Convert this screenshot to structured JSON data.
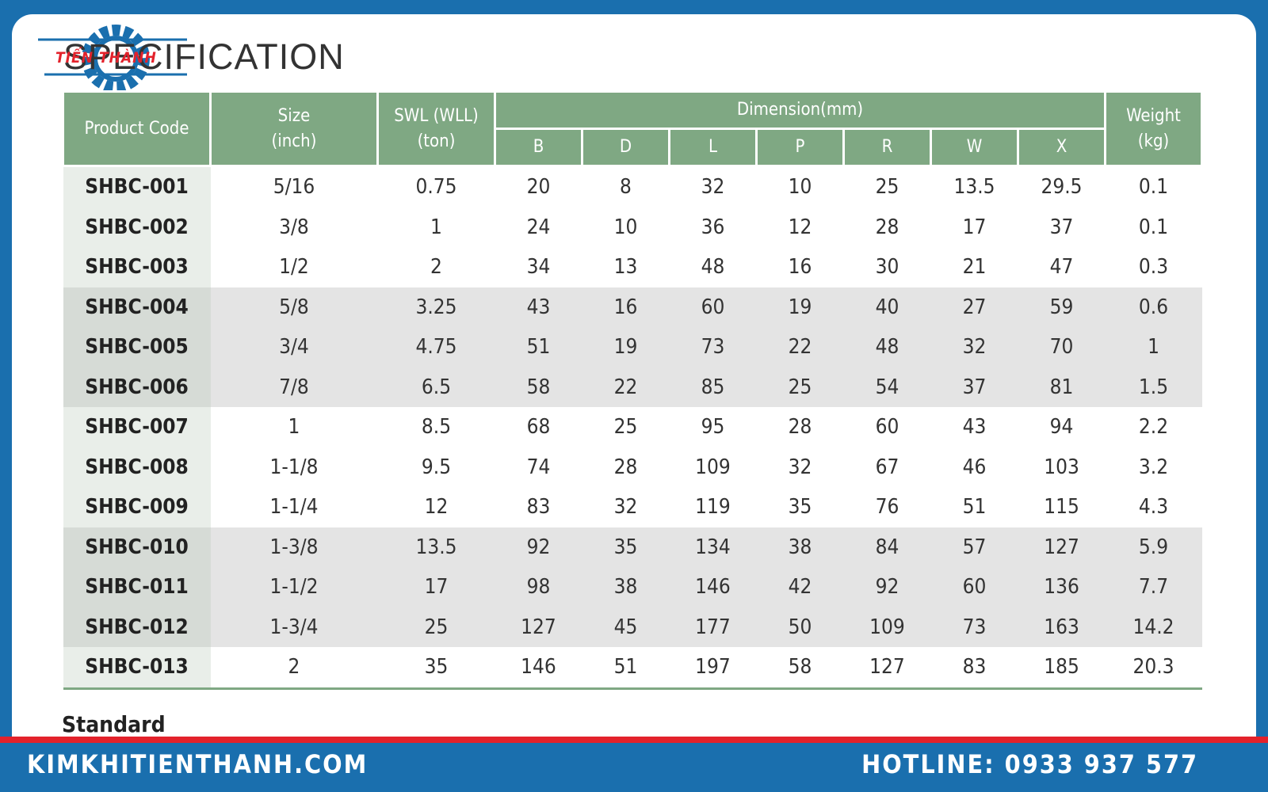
{
  "header": {
    "logo": "TIẾN THÀNH",
    "title": "SPECIFICATION"
  },
  "table": {
    "columns": {
      "code": "Product Code",
      "size": "Size\n(inch)",
      "swl": "SWL (WLL)\n(ton)",
      "dimension": "Dimension(mm)",
      "dims": [
        "B",
        "D",
        "L",
        "P",
        "R",
        "W",
        "X"
      ],
      "weight": "Weight\n(kg)"
    },
    "rows": [
      [
        "SHBC-001",
        "5/16",
        "0.75",
        "20",
        "8",
        "32",
        "10",
        "25",
        "13.5",
        "29.5",
        "0.1"
      ],
      [
        "SHBC-002",
        "3/8",
        "1",
        "24",
        "10",
        "36",
        "12",
        "28",
        "17",
        "37",
        "0.1"
      ],
      [
        "SHBC-003",
        "1/2",
        "2",
        "34",
        "13",
        "48",
        "16",
        "30",
        "21",
        "47",
        "0.3"
      ],
      [
        "SHBC-004",
        "5/8",
        "3.25",
        "43",
        "16",
        "60",
        "19",
        "40",
        "27",
        "59",
        "0.6"
      ],
      [
        "SHBC-005",
        "3/4",
        "4.75",
        "51",
        "19",
        "73",
        "22",
        "48",
        "32",
        "70",
        "1"
      ],
      [
        "SHBC-006",
        "7/8",
        "6.5",
        "58",
        "22",
        "85",
        "25",
        "54",
        "37",
        "81",
        "1.5"
      ],
      [
        "SHBC-007",
        "1",
        "8.5",
        "68",
        "25",
        "95",
        "28",
        "60",
        "43",
        "94",
        "2.2"
      ],
      [
        "SHBC-008",
        "1-1/8",
        "9.5",
        "74",
        "28",
        "109",
        "32",
        "67",
        "46",
        "103",
        "3.2"
      ],
      [
        "SHBC-009",
        "1-1/4",
        "12",
        "83",
        "32",
        "119",
        "35",
        "76",
        "51",
        "115",
        "4.3"
      ],
      [
        "SHBC-010",
        "1-3/8",
        "13.5",
        "92",
        "35",
        "134",
        "38",
        "84",
        "57",
        "127",
        "5.9"
      ],
      [
        "SHBC-011",
        "1-1/2",
        "17",
        "98",
        "38",
        "146",
        "42",
        "92",
        "60",
        "136",
        "7.7"
      ],
      [
        "SHBC-012",
        "1-3/4",
        "25",
        "127",
        "45",
        "177",
        "50",
        "109",
        "73",
        "163",
        "14.2"
      ],
      [
        "SHBC-013",
        "2",
        "35",
        "146",
        "51",
        "197",
        "58",
        "127",
        "83",
        "185",
        "20.3"
      ]
    ]
  },
  "standard": "Standard",
  "footer": {
    "website": "KIMKHITIENTHANH.COM",
    "hotline": "HOTLINE: 0933 937 577"
  }
}
